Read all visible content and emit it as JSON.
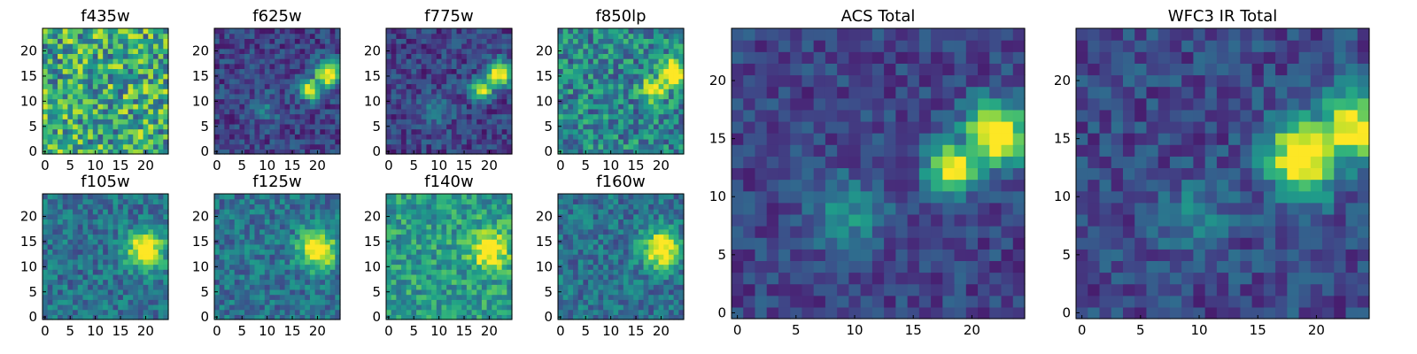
{
  "figure": {
    "colormap": "viridis",
    "background": "#ffffff"
  },
  "chart_data": [
    {
      "type": "heatmap",
      "title": "f435w",
      "xticks": [
        0,
        5,
        10,
        15,
        20
      ],
      "yticks": [
        0,
        5,
        10,
        15,
        20
      ],
      "xlim": [
        -0.5,
        24.5
      ],
      "ylim": [
        -0.5,
        24.5
      ],
      "grid": false,
      "pattern": "noise"
    },
    {
      "type": "heatmap",
      "title": "f625w",
      "xticks": [
        0,
        5,
        10,
        15,
        20
      ],
      "yticks": [
        0,
        5,
        10,
        15,
        20
      ],
      "xlim": [
        -0.5,
        24.5
      ],
      "ylim": [
        -0.5,
        24.5
      ],
      "grid": false,
      "pattern": "acs_blob"
    },
    {
      "type": "heatmap",
      "title": "f775w",
      "xticks": [
        0,
        5,
        10,
        15,
        20
      ],
      "yticks": [
        0,
        5,
        10,
        15,
        20
      ],
      "xlim": [
        -0.5,
        24.5
      ],
      "ylim": [
        -0.5,
        24.5
      ],
      "grid": false,
      "pattern": "acs_blob"
    },
    {
      "type": "heatmap",
      "title": "f850lp",
      "xticks": [
        0,
        5,
        10,
        15,
        20
      ],
      "yticks": [
        0,
        5,
        10,
        15,
        20
      ],
      "xlim": [
        -0.5,
        24.5
      ],
      "ylim": [
        -0.5,
        24.5
      ],
      "grid": false,
      "pattern": "acs_noisy"
    },
    {
      "type": "heatmap",
      "title": "f105w",
      "xticks": [
        0,
        5,
        10,
        15,
        20
      ],
      "yticks": [
        0,
        5,
        10,
        15,
        20
      ],
      "xlim": [
        -0.5,
        24.5
      ],
      "ylim": [
        -0.5,
        24.5
      ],
      "grid": false,
      "pattern": "ir_blob"
    },
    {
      "type": "heatmap",
      "title": "f125w",
      "xticks": [
        0,
        5,
        10,
        15,
        20
      ],
      "yticks": [
        0,
        5,
        10,
        15,
        20
      ],
      "xlim": [
        -0.5,
        24.5
      ],
      "ylim": [
        -0.5,
        24.5
      ],
      "grid": false,
      "pattern": "ir_blob"
    },
    {
      "type": "heatmap",
      "title": "f140w",
      "xticks": [
        0,
        5,
        10,
        15,
        20
      ],
      "yticks": [
        0,
        5,
        10,
        15,
        20
      ],
      "xlim": [
        -0.5,
        24.5
      ],
      "ylim": [
        -0.5,
        24.5
      ],
      "grid": false,
      "pattern": "ir_bright"
    },
    {
      "type": "heatmap",
      "title": "f160w",
      "xticks": [
        0,
        5,
        10,
        15,
        20
      ],
      "yticks": [
        0,
        5,
        10,
        15,
        20
      ],
      "xlim": [
        -0.5,
        24.5
      ],
      "ylim": [
        -0.5,
        24.5
      ],
      "grid": false,
      "pattern": "ir_blob"
    },
    {
      "type": "heatmap",
      "title": "ACS Total",
      "xticks": [
        0,
        5,
        10,
        15,
        20
      ],
      "yticks": [
        0,
        5,
        10,
        15,
        20
      ],
      "xlim": [
        -0.5,
        24.5
      ],
      "ylim": [
        -0.5,
        24.5
      ],
      "grid": false,
      "pattern": "acs_total"
    },
    {
      "type": "heatmap",
      "title": "WFC3 IR Total",
      "xticks": [
        0,
        5,
        10,
        15,
        20
      ],
      "yticks": [
        0,
        5,
        10,
        15,
        20
      ],
      "xlim": [
        -0.5,
        24.5
      ],
      "ylim": [
        -0.5,
        24.5
      ],
      "grid": false,
      "pattern": "ir_total"
    }
  ]
}
